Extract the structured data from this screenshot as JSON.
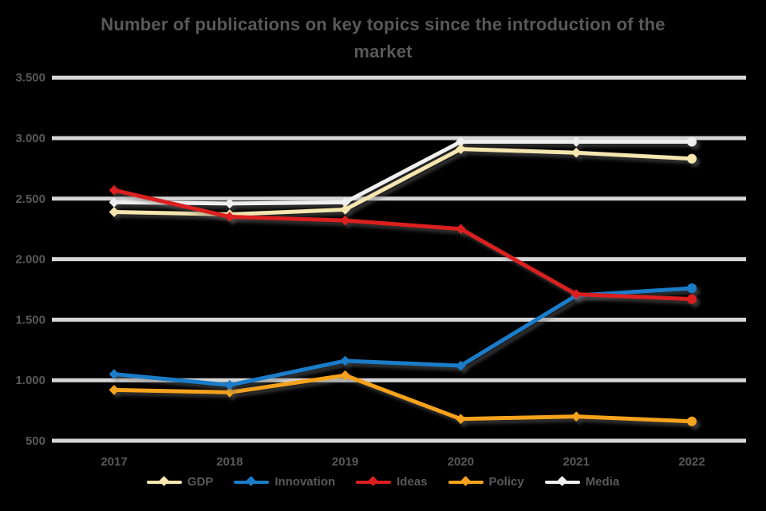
{
  "title": {
    "line1": "Number of publications on key topics since the introduction of the",
    "line2": "market"
  },
  "colors": {
    "background": "#000000",
    "gridline": "#D6D6D6",
    "text": "#595959"
  },
  "chart_data": {
    "type": "line",
    "title": "Number of publications on key topics since the introduction of the market",
    "categories": [
      "2017",
      "2018",
      "2019",
      "2020",
      "2021",
      "2022"
    ],
    "series": [
      {
        "name": "Media",
        "color": "#EFEFEF",
        "values": [
          2470,
          2460,
          2470,
          2970,
          2970,
          2970
        ]
      },
      {
        "name": "GDP",
        "color": "#F5E6B0",
        "values": [
          2390,
          2370,
          2410,
          2910,
          2880,
          2830
        ]
      },
      {
        "name": "Policy",
        "color": "#F6A21C",
        "values": [
          920,
          900,
          1040,
          680,
          700,
          660
        ]
      },
      {
        "name": "Innovation",
        "color": "#1B7CC8",
        "values": [
          1050,
          960,
          1160,
          1120,
          1700,
          1760
        ]
      },
      {
        "name": "Ideas",
        "color": "#DB1F1F",
        "values": [
          2570,
          2350,
          2320,
          2250,
          1710,
          1670
        ]
      }
    ],
    "legend_order": [
      "GDP",
      "Innovation",
      "Ideas",
      "Policy",
      "Media"
    ],
    "xlabel": "",
    "ylabel": "",
    "ylim": [
      500,
      3500
    ],
    "ytick_values": [
      3500,
      3000,
      2500,
      2000,
      1500,
      1000,
      500
    ],
    "ytick_labels": [
      "3.500",
      "3.000",
      "2.500",
      "2.000",
      "1.500",
      "1.000",
      "500"
    ],
    "grid": true,
    "legend_position": "bottom",
    "marker": "diamond",
    "endpoint_marker": "circle"
  }
}
